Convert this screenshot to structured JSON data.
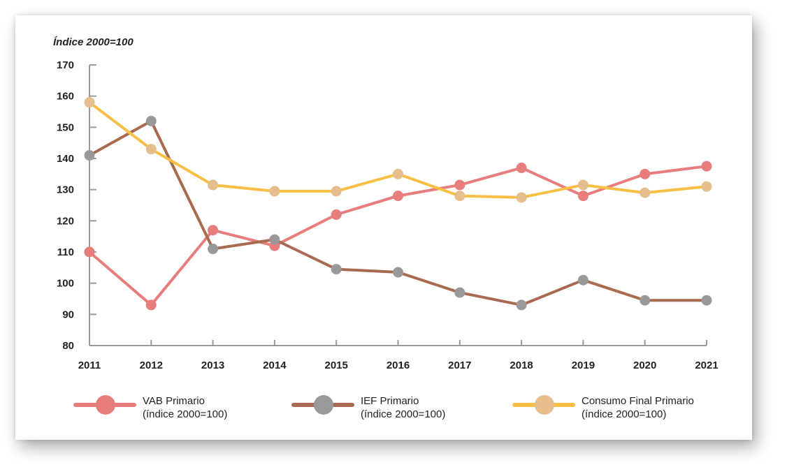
{
  "chart_data": {
    "type": "line",
    "unit_label": "Índice 2000=100",
    "x": [
      "2011",
      "2012",
      "2013",
      "2014",
      "2015",
      "2016",
      "2017",
      "2018",
      "2019",
      "2020",
      "2021"
    ],
    "ylim": [
      80,
      170
    ],
    "yticks": [
      80,
      90,
      100,
      110,
      120,
      130,
      140,
      150,
      160,
      170
    ],
    "grid": false,
    "legend_position": "bottom",
    "series": [
      {
        "name": "VAB Primario",
        "name_sub": "(índice 2000=100)",
        "line_color": "#e87d7d",
        "marker_color": "#e87d7d",
        "values": [
          110,
          93,
          117,
          112,
          122,
          128,
          131.5,
          137,
          128,
          135,
          137.5
        ]
      },
      {
        "name": "IEF Primario",
        "name_sub": "(índice 2000=100)",
        "line_color": "#a96b4f",
        "marker_color": "#999999",
        "values": [
          141,
          152,
          111,
          114,
          104.5,
          103.5,
          97,
          93,
          101,
          94.5,
          94.5
        ]
      },
      {
        "name": "Consumo Final Primario",
        "name_sub": "(índice 2000=100)",
        "line_color": "#f7bf45",
        "marker_color": "#e6bd8c",
        "values": [
          158,
          143,
          131.5,
          129.5,
          129.5,
          135,
          128,
          127.5,
          131.5,
          129,
          131
        ]
      }
    ]
  }
}
